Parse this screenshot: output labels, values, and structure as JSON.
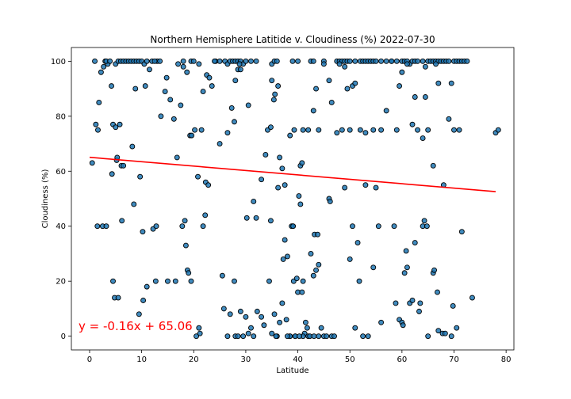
{
  "chart_data": {
    "type": "scatter",
    "title": "Northern Hemisphere Latitide v. Cloudiness (%) 2022-07-30",
    "xlabel": "Latitude",
    "ylabel": "Cloudiness (%)",
    "xlim": [
      -3.5,
      81.5
    ],
    "ylim": [
      -5,
      105
    ],
    "xticks": [
      0,
      10,
      20,
      30,
      40,
      50,
      60,
      70,
      80
    ],
    "yticks": [
      0,
      20,
      40,
      60,
      80,
      100
    ],
    "grid": false,
    "marker_color": "#1f77b4",
    "marker_edge_color": "#000000",
    "regression": {
      "slope": -0.16,
      "intercept": 65.06,
      "x_range": [
        0,
        78
      ],
      "color": "#ff0000",
      "equation_label": "y = -0.16x + 65.06",
      "label_color": "#ff0000"
    },
    "points": [
      [
        1,
        100
      ],
      [
        3,
        100
      ],
      [
        3.5,
        99
      ],
      [
        3.2,
        100
      ],
      [
        3.9,
        100
      ],
      [
        5,
        99
      ],
      [
        5.5,
        100
      ],
      [
        6,
        100
      ],
      [
        6.5,
        100
      ],
      [
        7,
        100
      ],
      [
        7.5,
        100
      ],
      [
        8,
        100
      ],
      [
        8.5,
        100
      ],
      [
        9,
        100
      ],
      [
        9.5,
        100
      ],
      [
        10,
        100
      ],
      [
        10.5,
        99
      ],
      [
        11,
        100
      ],
      [
        12,
        100
      ],
      [
        13,
        100
      ],
      [
        13.5,
        100
      ],
      [
        17,
        99
      ],
      [
        18,
        98
      ],
      [
        19.5,
        100
      ],
      [
        20,
        100
      ],
      [
        21,
        99
      ],
      [
        25,
        100
      ],
      [
        26,
        100
      ],
      [
        26.5,
        99
      ],
      [
        27,
        100
      ],
      [
        27.5,
        100
      ],
      [
        28,
        100
      ],
      [
        28.5,
        100
      ],
      [
        29,
        100
      ],
      [
        29.5,
        99
      ],
      [
        30,
        100
      ],
      [
        31,
        100
      ],
      [
        32,
        100
      ],
      [
        35,
        99
      ],
      [
        35.5,
        100
      ],
      [
        36,
        100
      ],
      [
        39,
        100
      ],
      [
        40,
        100
      ],
      [
        42.5,
        100
      ],
      [
        43,
        100
      ],
      [
        45,
        100
      ],
      [
        47.5,
        100
      ],
      [
        48,
        100
      ],
      [
        48.5,
        100
      ],
      [
        49,
        100
      ],
      [
        49.5,
        100
      ],
      [
        50,
        100
      ],
      [
        51,
        100
      ],
      [
        52,
        100
      ],
      [
        52.5,
        100
      ],
      [
        53,
        100
      ],
      [
        53.5,
        100
      ],
      [
        54,
        100
      ],
      [
        54.5,
        100
      ],
      [
        55,
        100
      ],
      [
        56,
        100
      ],
      [
        57,
        100
      ],
      [
        58,
        100
      ],
      [
        59,
        100
      ],
      [
        60,
        100
      ],
      [
        60.5,
        100
      ],
      [
        61,
        100
      ],
      [
        61.5,
        99
      ],
      [
        62,
        100
      ],
      [
        62.5,
        100
      ],
      [
        63,
        100
      ],
      [
        64,
        100
      ],
      [
        64.5,
        98
      ],
      [
        65,
        100
      ],
      [
        65.5,
        100
      ],
      [
        66,
        100
      ],
      [
        66.5,
        100
      ],
      [
        67,
        100
      ],
      [
        67.5,
        100
      ],
      [
        68,
        100
      ],
      [
        68.5,
        100
      ],
      [
        69,
        100
      ],
      [
        70,
        100
      ],
      [
        70.5,
        100
      ],
      [
        71,
        100
      ],
      [
        71.5,
        100
      ],
      [
        72,
        100
      ],
      [
        72.5,
        100
      ],
      [
        0.5,
        63
      ],
      [
        1.2,
        77
      ],
      [
        1.6,
        75
      ],
      [
        1.8,
        85
      ],
      [
        2.2,
        96
      ],
      [
        2.7,
        98
      ],
      [
        4.2,
        91
      ],
      [
        4.5,
        77
      ],
      [
        5,
        76
      ],
      [
        5.8,
        77
      ],
      [
        5.2,
        64
      ],
      [
        5.3,
        65
      ],
      [
        6.1,
        62
      ],
      [
        6.5,
        62
      ],
      [
        8.2,
        69
      ],
      [
        8.8,
        90
      ],
      [
        9.7,
        58
      ],
      [
        10.7,
        91
      ],
      [
        11.5,
        97
      ],
      [
        12.5,
        100
      ],
      [
        13.7,
        80
      ],
      [
        14.5,
        89
      ],
      [
        14.8,
        94
      ],
      [
        15.5,
        86
      ],
      [
        16.2,
        79
      ],
      [
        16.8,
        65
      ],
      [
        17.5,
        84
      ],
      [
        18,
        100
      ],
      [
        18.7,
        96
      ],
      [
        19.3,
        73
      ],
      [
        19.6,
        73
      ],
      [
        20.2,
        75
      ],
      [
        20.8,
        58
      ],
      [
        21.5,
        75
      ],
      [
        21.8,
        89
      ],
      [
        22.5,
        95
      ],
      [
        23,
        94
      ],
      [
        23.5,
        91
      ],
      [
        24.2,
        100
      ],
      [
        25,
        70
      ],
      [
        26.5,
        74
      ],
      [
        27.3,
        83
      ],
      [
        27.8,
        78
      ],
      [
        28,
        93
      ],
      [
        28.5,
        97
      ],
      [
        29,
        97
      ],
      [
        30.5,
        84
      ],
      [
        31.5,
        49
      ],
      [
        33,
        57
      ],
      [
        33.8,
        66
      ],
      [
        34.2,
        75
      ],
      [
        34.8,
        76
      ],
      [
        35,
        93
      ],
      [
        35.4,
        86
      ],
      [
        35.6,
        88
      ],
      [
        36.2,
        91
      ],
      [
        36.5,
        65
      ],
      [
        37,
        61
      ],
      [
        37.5,
        55
      ],
      [
        38.5,
        73
      ],
      [
        39.3,
        75
      ],
      [
        40.5,
        62
      ],
      [
        40.8,
        63
      ],
      [
        41,
        75
      ],
      [
        42,
        75
      ],
      [
        43,
        82
      ],
      [
        43.5,
        90
      ],
      [
        44,
        75
      ],
      [
        45,
        99
      ],
      [
        46,
        93
      ],
      [
        46.5,
        85
      ],
      [
        47.5,
        74
      ],
      [
        48,
        99
      ],
      [
        48.5,
        75
      ],
      [
        49,
        98
      ],
      [
        49.5,
        90
      ],
      [
        50,
        75
      ],
      [
        50.5,
        91
      ],
      [
        51,
        92
      ],
      [
        52,
        75
      ],
      [
        53,
        74
      ],
      [
        54.5,
        75
      ],
      [
        56,
        75
      ],
      [
        57,
        82
      ],
      [
        58,
        100
      ],
      [
        59,
        75
      ],
      [
        59.5,
        91
      ],
      [
        60,
        96
      ],
      [
        61,
        99
      ],
      [
        62,
        77
      ],
      [
        62.5,
        87
      ],
      [
        63,
        75
      ],
      [
        64,
        72
      ],
      [
        64.5,
        87
      ],
      [
        65,
        75
      ],
      [
        66,
        62
      ],
      [
        66.5,
        99
      ],
      [
        67,
        92
      ],
      [
        68,
        55
      ],
      [
        69,
        79
      ],
      [
        69.5,
        92
      ],
      [
        70,
        75
      ],
      [
        71,
        75
      ],
      [
        78,
        74
      ],
      [
        78.5,
        75
      ],
      [
        1.5,
        40
      ],
      [
        2.5,
        40
      ],
      [
        3.2,
        40
      ],
      [
        4.3,
        59
      ],
      [
        4.5,
        20
      ],
      [
        4.8,
        14
      ],
      [
        5.5,
        14
      ],
      [
        6.2,
        42
      ],
      [
        8.5,
        48
      ],
      [
        9.5,
        8
      ],
      [
        10.2,
        38
      ],
      [
        10.3,
        13
      ],
      [
        11,
        18
      ],
      [
        12.2,
        39
      ],
      [
        12.8,
        40
      ],
      [
        12.7,
        20
      ],
      [
        15,
        20
      ],
      [
        16.5,
        20
      ],
      [
        17.8,
        40
      ],
      [
        18.3,
        42
      ],
      [
        18.5,
        33
      ],
      [
        18.8,
        24
      ],
      [
        19,
        23
      ],
      [
        19.5,
        20
      ],
      [
        21,
        3
      ],
      [
        21.2,
        1
      ],
      [
        21.8,
        40
      ],
      [
        22.2,
        44
      ],
      [
        22.3,
        56
      ],
      [
        22.8,
        55
      ],
      [
        25.5,
        22
      ],
      [
        25.8,
        10
      ],
      [
        26.5,
        0
      ],
      [
        27,
        8
      ],
      [
        27.8,
        20
      ],
      [
        28,
        0
      ],
      [
        28.5,
        0
      ],
      [
        29,
        9
      ],
      [
        29.5,
        0
      ],
      [
        30,
        7
      ],
      [
        30.2,
        43
      ],
      [
        30.5,
        1
      ],
      [
        31,
        3
      ],
      [
        31.5,
        0
      ],
      [
        32.2,
        9
      ],
      [
        33,
        7
      ],
      [
        33.5,
        4
      ],
      [
        34.5,
        20
      ],
      [
        34.8,
        42
      ],
      [
        35,
        1
      ],
      [
        35.5,
        8
      ],
      [
        36,
        0
      ],
      [
        36.2,
        54
      ],
      [
        36.5,
        5
      ],
      [
        37,
        12
      ],
      [
        37.2,
        28
      ],
      [
        37.5,
        35
      ],
      [
        37.8,
        6
      ],
      [
        38,
        29
      ],
      [
        38.5,
        0
      ],
      [
        39,
        40
      ],
      [
        39.2,
        20
      ],
      [
        39.5,
        0
      ],
      [
        39.8,
        21
      ],
      [
        40,
        16
      ],
      [
        40.2,
        51
      ],
      [
        40.5,
        48
      ],
      [
        40.8,
        16
      ],
      [
        41,
        20
      ],
      [
        41.3,
        1
      ],
      [
        41.5,
        5
      ],
      [
        41.8,
        3
      ],
      [
        42,
        0
      ],
      [
        42.5,
        30
      ],
      [
        43,
        22
      ],
      [
        43.2,
        37
      ],
      [
        43.5,
        24
      ],
      [
        43.8,
        37
      ],
      [
        44,
        26
      ],
      [
        44.5,
        3
      ],
      [
        45,
        0
      ],
      [
        45.5,
        0
      ],
      [
        46,
        50
      ],
      [
        46.2,
        49
      ],
      [
        46.5,
        0
      ],
      [
        47,
        0
      ],
      [
        49,
        54
      ],
      [
        50,
        28
      ],
      [
        50.5,
        40
      ],
      [
        51,
        3
      ],
      [
        51.5,
        34
      ],
      [
        51.8,
        20
      ],
      [
        52.5,
        0
      ],
      [
        53,
        55
      ],
      [
        53.5,
        0
      ],
      [
        54.5,
        25
      ],
      [
        55,
        54
      ],
      [
        55.5,
        40
      ],
      [
        56,
        5
      ],
      [
        58.5,
        40
      ],
      [
        58.8,
        12
      ],
      [
        59.5,
        6
      ],
      [
        60,
        5
      ],
      [
        60.2,
        4
      ],
      [
        60.5,
        23
      ],
      [
        60.8,
        31
      ],
      [
        61,
        25
      ],
      [
        61.5,
        12
      ],
      [
        62,
        13
      ],
      [
        62.5,
        34
      ],
      [
        63.3,
        9
      ],
      [
        63.5,
        12
      ],
      [
        64,
        40
      ],
      [
        64.3,
        42
      ],
      [
        64.8,
        40
      ],
      [
        65,
        0
      ],
      [
        66,
        23
      ],
      [
        66.2,
        24
      ],
      [
        66.8,
        16
      ],
      [
        67,
        2
      ],
      [
        67.8,
        1
      ],
      [
        68.3,
        1
      ],
      [
        69.5,
        0
      ],
      [
        69.8,
        11
      ],
      [
        70.5,
        3
      ],
      [
        71.5,
        38
      ],
      [
        73.5,
        14
      ],
      [
        24,
        100
      ],
      [
        28.8,
        99
      ],
      [
        32,
        43
      ],
      [
        38.5,
        0
      ],
      [
        39.5,
        0
      ],
      [
        41,
        0
      ],
      [
        42.3,
        0
      ],
      [
        43.1,
        0
      ],
      [
        44,
        0
      ],
      [
        38.8,
        40
      ],
      [
        39.1,
        40
      ],
      [
        20.5,
        0
      ],
      [
        35.8,
        0
      ],
      [
        38,
        0
      ],
      [
        40.3,
        0
      ]
    ]
  }
}
